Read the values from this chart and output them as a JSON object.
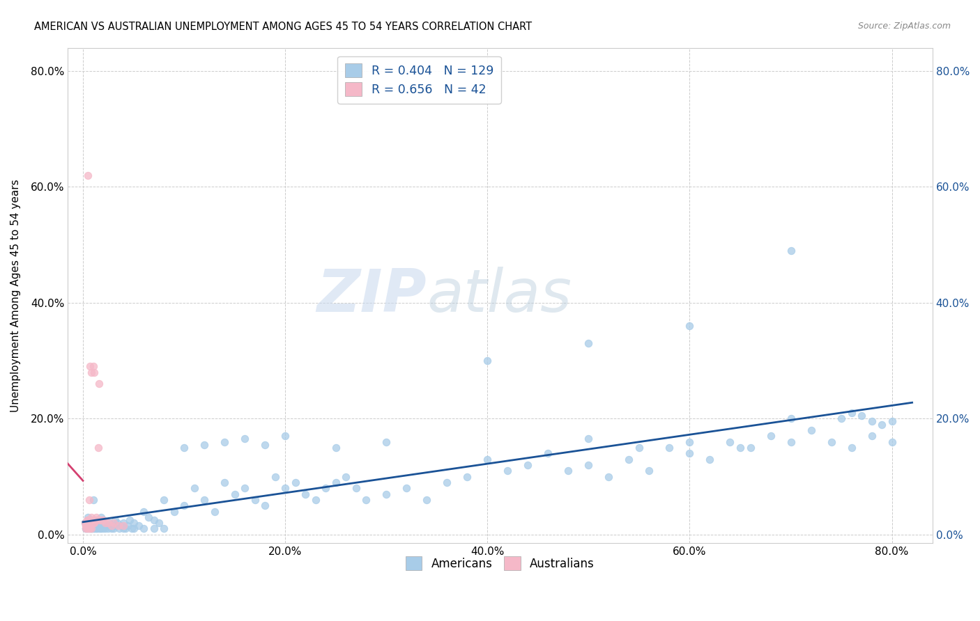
{
  "title": "AMERICAN VS AUSTRALIAN UNEMPLOYMENT AMONG AGES 45 TO 54 YEARS CORRELATION CHART",
  "source": "Source: ZipAtlas.com",
  "ylabel": "Unemployment Among Ages 45 to 54 years",
  "tick_vals": [
    0.0,
    0.2,
    0.4,
    0.6,
    0.8
  ],
  "tick_labels": [
    "0.0%",
    "20.0%",
    "40.0%",
    "60.0%",
    "80.0%"
  ],
  "r_americans": 0.404,
  "n_americans": 129,
  "r_australians": 0.656,
  "n_australians": 42,
  "watermark_zip": "ZIP",
  "watermark_atlas": "atlas",
  "blue_scatter": "#a8cce8",
  "pink_scatter": "#f5b8c8",
  "blue_line": "#1a5296",
  "pink_line": "#d44070",
  "grid_color": "#cccccc",
  "legend_text_color": "#1a5296",
  "xlim": [
    -0.015,
    0.84
  ],
  "ylim": [
    -0.015,
    0.84
  ],
  "americans_x": [
    0.002,
    0.003,
    0.004,
    0.005,
    0.006,
    0.007,
    0.008,
    0.009,
    0.01,
    0.011,
    0.012,
    0.013,
    0.014,
    0.015,
    0.016,
    0.017,
    0.018,
    0.019,
    0.02,
    0.022,
    0.024,
    0.026,
    0.028,
    0.03,
    0.032,
    0.034,
    0.036,
    0.038,
    0.04,
    0.042,
    0.044,
    0.046,
    0.048,
    0.05,
    0.055,
    0.06,
    0.065,
    0.07,
    0.075,
    0.08,
    0.09,
    0.1,
    0.11,
    0.12,
    0.13,
    0.14,
    0.15,
    0.16,
    0.17,
    0.18,
    0.19,
    0.2,
    0.21,
    0.22,
    0.23,
    0.24,
    0.25,
    0.26,
    0.27,
    0.28,
    0.3,
    0.32,
    0.34,
    0.36,
    0.38,
    0.4,
    0.42,
    0.44,
    0.46,
    0.48,
    0.5,
    0.52,
    0.54,
    0.56,
    0.58,
    0.6,
    0.62,
    0.64,
    0.66,
    0.68,
    0.7,
    0.72,
    0.74,
    0.76,
    0.78,
    0.8,
    0.003,
    0.004,
    0.005,
    0.006,
    0.007,
    0.008,
    0.009,
    0.01,
    0.012,
    0.014,
    0.016,
    0.018,
    0.02,
    0.025,
    0.03,
    0.04,
    0.05,
    0.06,
    0.07,
    0.08,
    0.1,
    0.12,
    0.14,
    0.16,
    0.18,
    0.2,
    0.25,
    0.3,
    0.4,
    0.5,
    0.6,
    0.7,
    0.75,
    0.76,
    0.77,
    0.78,
    0.79,
    0.8,
    0.5,
    0.55,
    0.6,
    0.65,
    0.7
  ],
  "americans_y": [
    0.02,
    0.01,
    0.015,
    0.03,
    0.025,
    0.02,
    0.01,
    0.015,
    0.06,
    0.02,
    0.015,
    0.01,
    0.025,
    0.02,
    0.015,
    0.01,
    0.03,
    0.02,
    0.025,
    0.01,
    0.015,
    0.02,
    0.01,
    0.015,
    0.025,
    0.02,
    0.01,
    0.015,
    0.02,
    0.01,
    0.015,
    0.025,
    0.01,
    0.02,
    0.015,
    0.04,
    0.03,
    0.025,
    0.02,
    0.06,
    0.04,
    0.05,
    0.08,
    0.06,
    0.04,
    0.09,
    0.07,
    0.08,
    0.06,
    0.05,
    0.1,
    0.08,
    0.09,
    0.07,
    0.06,
    0.08,
    0.09,
    0.1,
    0.08,
    0.06,
    0.07,
    0.08,
    0.06,
    0.09,
    0.1,
    0.13,
    0.11,
    0.12,
    0.14,
    0.11,
    0.12,
    0.1,
    0.13,
    0.11,
    0.15,
    0.14,
    0.13,
    0.16,
    0.15,
    0.17,
    0.16,
    0.18,
    0.16,
    0.15,
    0.17,
    0.16,
    0.01,
    0.01,
    0.01,
    0.01,
    0.01,
    0.01,
    0.01,
    0.01,
    0.01,
    0.01,
    0.01,
    0.01,
    0.01,
    0.01,
    0.01,
    0.01,
    0.01,
    0.01,
    0.01,
    0.01,
    0.15,
    0.155,
    0.16,
    0.165,
    0.155,
    0.17,
    0.15,
    0.16,
    0.3,
    0.33,
    0.36,
    0.2,
    0.2,
    0.21,
    0.205,
    0.195,
    0.19,
    0.195,
    0.165,
    0.15,
    0.16,
    0.15,
    0.49
  ],
  "australians_x": [
    0.002,
    0.003,
    0.003,
    0.004,
    0.004,
    0.005,
    0.005,
    0.006,
    0.006,
    0.007,
    0.007,
    0.008,
    0.008,
    0.009,
    0.009,
    0.01,
    0.01,
    0.011,
    0.011,
    0.012,
    0.012,
    0.013,
    0.013,
    0.014,
    0.015,
    0.016,
    0.017,
    0.018,
    0.019,
    0.02,
    0.022,
    0.025,
    0.028,
    0.03,
    0.035,
    0.04,
    0.003,
    0.004,
    0.005,
    0.006,
    0.007,
    0.008
  ],
  "australians_y": [
    0.02,
    0.01,
    0.015,
    0.02,
    0.01,
    0.025,
    0.01,
    0.025,
    0.06,
    0.02,
    0.29,
    0.03,
    0.28,
    0.025,
    0.025,
    0.02,
    0.29,
    0.02,
    0.28,
    0.025,
    0.025,
    0.03,
    0.025,
    0.025,
    0.15,
    0.26,
    0.025,
    0.025,
    0.025,
    0.025,
    0.02,
    0.02,
    0.015,
    0.02,
    0.015,
    0.015,
    0.015,
    0.025,
    0.62,
    0.01,
    0.01,
    0.01
  ]
}
